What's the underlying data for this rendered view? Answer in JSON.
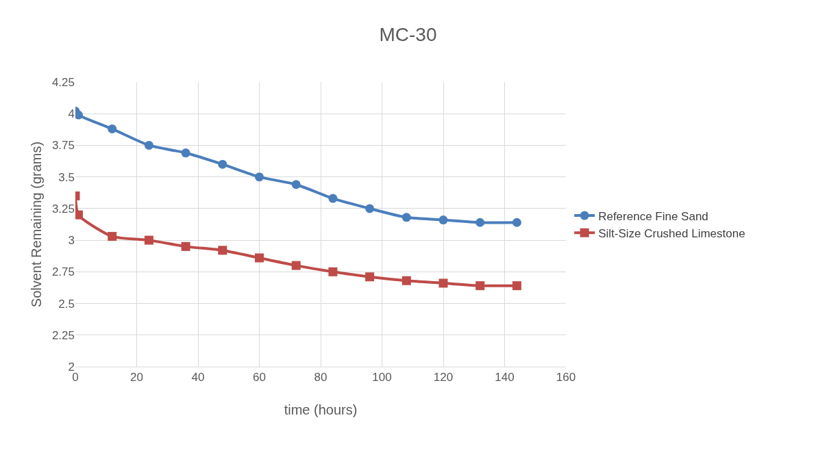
{
  "chart_data": {
    "type": "line",
    "title": "MC-30",
    "xlabel": "time (hours)",
    "ylabel": "Solvent Remaining (grams)",
    "xlim": [
      0,
      160
    ],
    "xticks": [
      0,
      20,
      40,
      60,
      80,
      100,
      120,
      140,
      160
    ],
    "ylim": [
      2,
      4.25
    ],
    "yticks": [
      2,
      2.25,
      2.5,
      2.75,
      3,
      3.25,
      3.5,
      3.75,
      4,
      4.25
    ],
    "grid": true,
    "legend": "right",
    "line_style": "solid",
    "series": [
      {
        "name": "Reference Fine Sand",
        "color": "#4a7ebb",
        "marker": "circle",
        "x": [
          0,
          1,
          12,
          24,
          36,
          48,
          60,
          72,
          84,
          96,
          108,
          120,
          132,
          144
        ],
        "values": [
          4.02,
          3.99,
          3.88,
          3.75,
          3.69,
          3.6,
          3.5,
          3.44,
          3.33,
          3.25,
          3.18,
          3.16,
          3.14,
          3.14
        ]
      },
      {
        "name": "Silt-Size Crushed Limestone",
        "color": "#be4b48",
        "marker": "square",
        "x": [
          0,
          1,
          12,
          24,
          36,
          48,
          60,
          72,
          84,
          96,
          108,
          120,
          132,
          144
        ],
        "values": [
          3.35,
          3.2,
          3.03,
          3.0,
          2.95,
          2.92,
          2.86,
          2.8,
          2.75,
          2.71,
          2.68,
          2.66,
          2.64,
          2.64
        ]
      }
    ]
  }
}
